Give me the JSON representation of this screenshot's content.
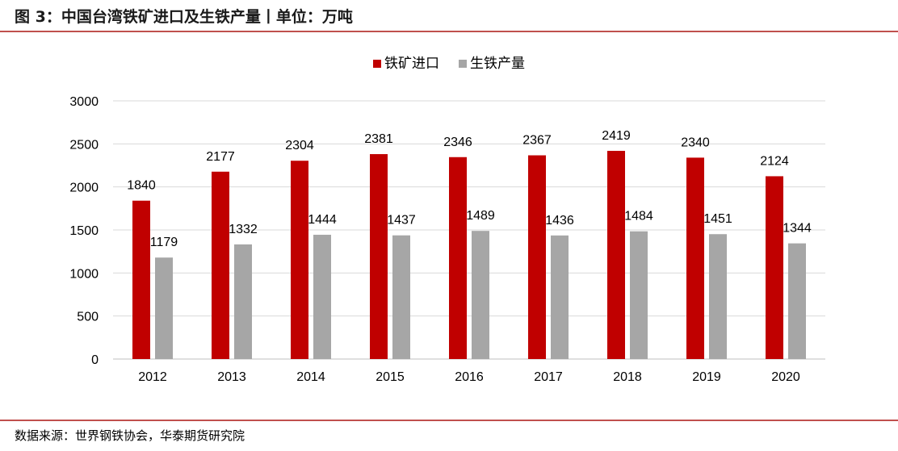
{
  "figure": {
    "title": "图 3：中国台湾铁矿进口及生铁产量丨单位：万吨",
    "source": "数据来源：世界钢铁协会，华泰期货研究院"
  },
  "colors": {
    "accent_rule": "#c0504d",
    "series_iron_ore": "#c00000",
    "series_pig_iron": "#a6a6a6",
    "grid": "#d9d9d9"
  },
  "chart_data": {
    "type": "bar",
    "categories": [
      "2012",
      "2013",
      "2014",
      "2015",
      "2016",
      "2017",
      "2018",
      "2019",
      "2020"
    ],
    "series": [
      {
        "name": "铁矿进口",
        "values": [
          1840,
          2177,
          2304,
          2381,
          2346,
          2367,
          2419,
          2340,
          2124
        ]
      },
      {
        "name": "生铁产量",
        "values": [
          1179,
          1332,
          1444,
          1437,
          1489,
          1436,
          1484,
          1451,
          1344
        ]
      }
    ],
    "ylim": [
      0,
      3000
    ],
    "yticks": [
      "0",
      "500",
      "1000",
      "1500",
      "2000",
      "2500",
      "3000"
    ],
    "grid": true,
    "legend": "top-center",
    "data_labels": true
  }
}
